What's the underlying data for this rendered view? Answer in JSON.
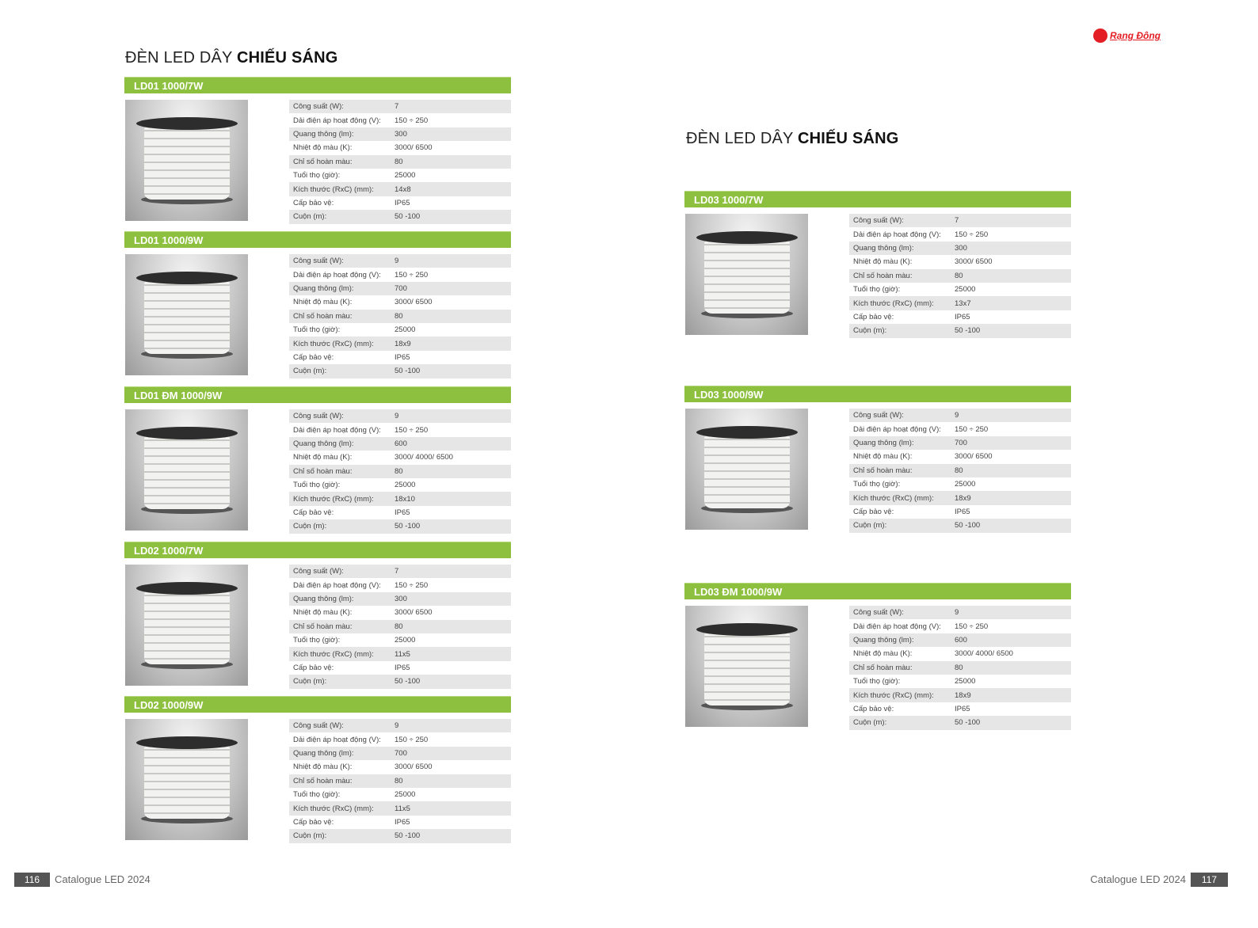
{
  "brand": {
    "logo_text": "Rạng Đông",
    "color": "#e31e24"
  },
  "accent": "#8dc03f",
  "left": {
    "title_regular": "ĐÈN LED DÂY ",
    "title_bold": "CHIẾU SÁNG",
    "page_number": "116",
    "footer_text": "Catalogue LED 2024"
  },
  "right": {
    "title_regular": "ĐÈN LED DÂY ",
    "title_bold": "CHIẾU SÁNG",
    "page_number": "117",
    "footer_text": "Catalogue LED 2024"
  },
  "spec_labels": [
    "Công suất (W):",
    "Dải điện áp hoạt động (V):",
    "Quang thông (lm):",
    "Nhiệt độ màu (K):",
    "Chỉ số hoàn màu:",
    "Tuổi thọ (giờ):",
    "Kích thước (RxC) (mm):",
    "Cấp bảo vệ:",
    "Cuộn (m):"
  ],
  "products": [
    {
      "name": "LD01 1000/7W",
      "values": [
        "7",
        "150 ÷ 250",
        "300",
        "3000/ 6500",
        "80",
        "25000",
        "14x8",
        "IP65",
        "50 -100"
      ]
    },
    {
      "name": "LD01 1000/9W",
      "values": [
        "9",
        "150 ÷ 250",
        "700",
        "3000/ 6500",
        "80",
        "25000",
        "18x9",
        "IP65",
        "50 -100"
      ]
    },
    {
      "name": "LD01 ĐM 1000/9W",
      "values": [
        "9",
        "150 ÷ 250",
        "600",
        "3000/ 4000/ 6500",
        "80",
        "25000",
        "18x10",
        "IP65",
        "50 -100"
      ]
    },
    {
      "name": "LD02 1000/7W",
      "values": [
        "7",
        "150 ÷ 250",
        "300",
        "3000/ 6500",
        "80",
        "25000",
        "11x5",
        "IP65",
        "50 -100"
      ]
    },
    {
      "name": "LD02 1000/9W",
      "values": [
        "9",
        "150 ÷ 250",
        "700",
        "3000/ 6500",
        "80",
        "25000",
        "11x5",
        "IP65",
        "50 -100"
      ]
    },
    {
      "name": "LD03 1000/7W",
      "values": [
        "7",
        "150 ÷ 250",
        "300",
        "3000/ 6500",
        "80",
        "25000",
        "13x7",
        "IP65",
        "50 -100"
      ]
    },
    {
      "name": "LD03 1000/9W",
      "values": [
        "9",
        "150 ÷ 250",
        "700",
        "3000/ 6500",
        "80",
        "25000",
        "18x9",
        "IP65",
        "50 -100"
      ]
    },
    {
      "name": "LD03 ĐM 1000/9W",
      "values": [
        "9",
        "150 ÷ 250",
        "600",
        "3000/ 4000/ 6500",
        "80",
        "25000",
        "18x9",
        "IP65",
        "50 -100"
      ]
    }
  ]
}
